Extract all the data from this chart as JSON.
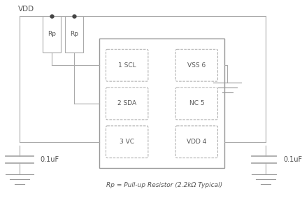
{
  "bg_color": "#ffffff",
  "line_color": "#aaaaaa",
  "text_color": "#555555",
  "dot_color": "#444444",
  "vdd_label": "VDD",
  "rp_label": "Rp",
  "footnote": "Rp = Pull-up Resistor (2.2kΩ Typical)",
  "cap_label": "0.1uF",
  "pins_left": [
    "1 SCL",
    "2 SDA",
    "3 VC"
  ],
  "pins_right": [
    "VSS 6",
    "NC 5",
    "VDD 4"
  ],
  "dashed_color": "#aaaaaa",
  "ground_color": "#999999",
  "ic_lw": 1.0,
  "wire_lw": 0.8,
  "pin_lw": 0.7
}
